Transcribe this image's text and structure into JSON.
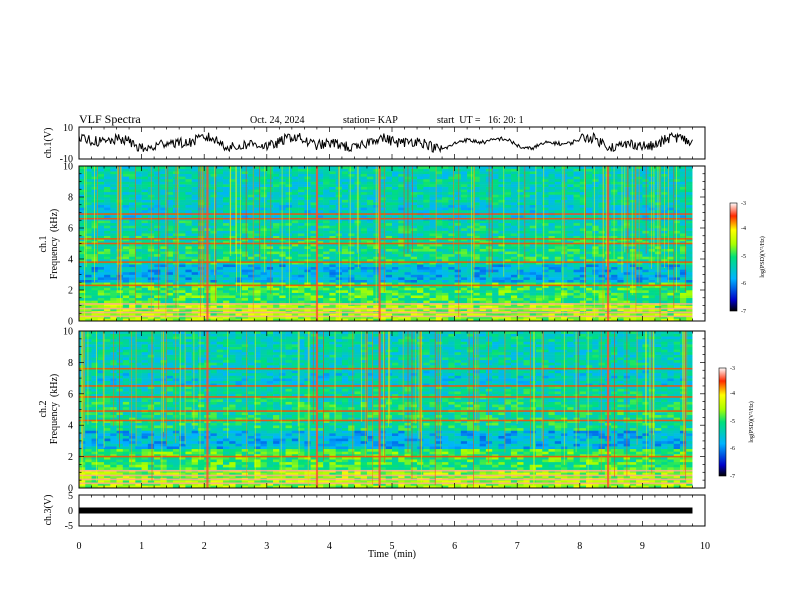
{
  "header": {
    "title": "VLF Spectra",
    "date": "Oct. 24, 2024",
    "station": "station= KAP",
    "start_ut": "start  UT =   16: 20: 1"
  },
  "chart_data": [
    {
      "type": "line",
      "name": "ch1-waveform",
      "ylabel": "ch.1(V)",
      "ylim": [
        -10,
        10
      ],
      "yticks": [
        "10",
        "-10"
      ],
      "xlim": [
        0,
        10
      ],
      "x_extent_min": 9.8
    },
    {
      "type": "heatmap",
      "name": "ch1-spectrogram",
      "ylabel": [
        "ch.1",
        "Frequency  (kHz)"
      ],
      "ylim": [
        0,
        10
      ],
      "yticks": [
        "0",
        "2",
        "4",
        "6",
        "8",
        "10"
      ],
      "xlim": [
        0,
        10
      ],
      "x_extent_min": 9.8,
      "colorbar": {
        "label": "log(PSD)(V²/Hz)",
        "range": [
          -7,
          -3
        ],
        "ticks": [
          "-3",
          "-4",
          "-5",
          "-6",
          "-7"
        ]
      },
      "bands_khz": [
        0.3,
        0.55,
        0.8,
        1.1,
        2.3,
        3.8,
        5.0,
        5.3,
        6.6,
        6.9
      ],
      "events_min": [
        2.05,
        3.8,
        4.8,
        8.45
      ]
    },
    {
      "type": "heatmap",
      "name": "ch2-spectrogram",
      "ylabel": [
        "ch.2",
        "Frequency  (kHz)"
      ],
      "ylim": [
        0,
        10
      ],
      "yticks": [
        "0",
        "2",
        "4",
        "6",
        "8",
        "10"
      ],
      "xlim": [
        0,
        10
      ],
      "x_extent_min": 9.8,
      "colorbar": {
        "label": "log(PSD)(V²/Hz)",
        "range": [
          -7,
          -3
        ],
        "ticks": [
          "-3",
          "-4",
          "-5",
          "-6",
          "-7"
        ]
      },
      "bands_khz": [
        0.3,
        0.55,
        0.8,
        1.1,
        2.0,
        4.3,
        4.9,
        5.8,
        6.5,
        7.6
      ],
      "events_min": [
        2.05,
        3.8,
        4.8,
        8.45
      ]
    },
    {
      "type": "line",
      "name": "ch3-waveform",
      "ylabel": "ch.3(V)",
      "ylim": [
        -5,
        5
      ],
      "yticks": [
        "5",
        "0",
        "-5"
      ],
      "xlim": [
        0,
        10
      ],
      "x_extent_min": 9.8,
      "level_v": 0
    }
  ],
  "xaxis": {
    "label": "Time  (min)",
    "ticks": [
      "0",
      "1",
      "2",
      "3",
      "4",
      "5",
      "6",
      "7",
      "8",
      "9",
      "10"
    ]
  }
}
